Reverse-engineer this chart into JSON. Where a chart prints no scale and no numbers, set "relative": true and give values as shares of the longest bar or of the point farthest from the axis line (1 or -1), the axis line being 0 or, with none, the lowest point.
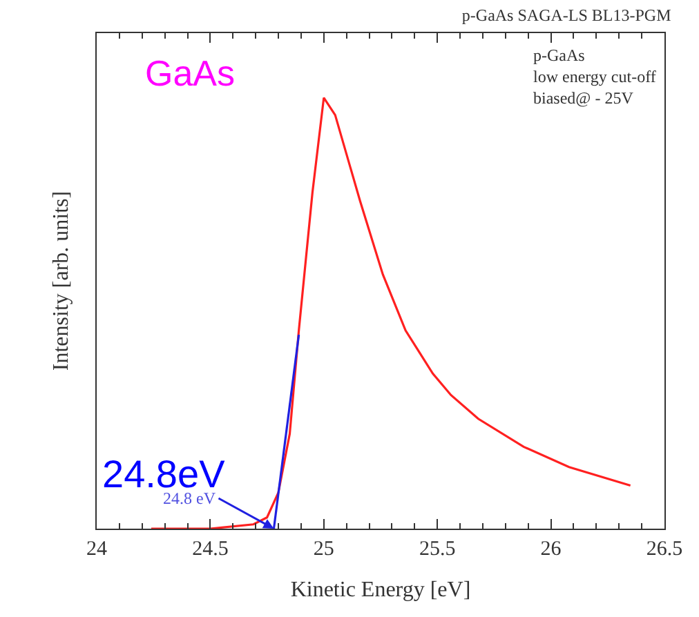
{
  "chart_data": {
    "type": "line",
    "title": "p-GaAs SAGA-LS BL13-PGM",
    "xlabel": "Kinetic Energy [eV]",
    "ylabel": "Intensity [arb. units]",
    "relative": true,
    "tick_labels": "x",
    "marker": "none",
    "line_style": "solid",
    "xlim": [
      24,
      26.5
    ],
    "xticks": [
      24,
      24.5,
      25,
      25.5,
      26,
      26.5
    ],
    "series": [
      {
        "color": "#ff2020",
        "x": [
          24.24,
          24.5,
          24.69,
          24.75,
          24.8,
          24.85,
          24.89,
          24.95,
          25.0,
          25.05,
          25.16,
          25.26,
          25.36,
          25.48,
          25.56,
          25.68,
          25.88,
          26.08,
          26.35
        ],
        "values": [
          0,
          0,
          0.01,
          0.026,
          0.084,
          0.22,
          0.46,
          0.78,
          1.0,
          0.96,
          0.76,
          0.59,
          0.46,
          0.36,
          0.31,
          0.255,
          0.19,
          0.143,
          0.1
        ]
      },
      {
        "color": "#2020e0",
        "x": [
          24.78,
          24.89
        ],
        "values": [
          0,
          0.45
        ]
      }
    ],
    "annotations": [
      "GaAs",
      "p-GaAs\nlow energy cut-off\nbiased@ - 25V",
      "24.8eV",
      {
        "text": "24.8 eV",
        "x": 24.78,
        "y": 0
      }
    ]
  }
}
